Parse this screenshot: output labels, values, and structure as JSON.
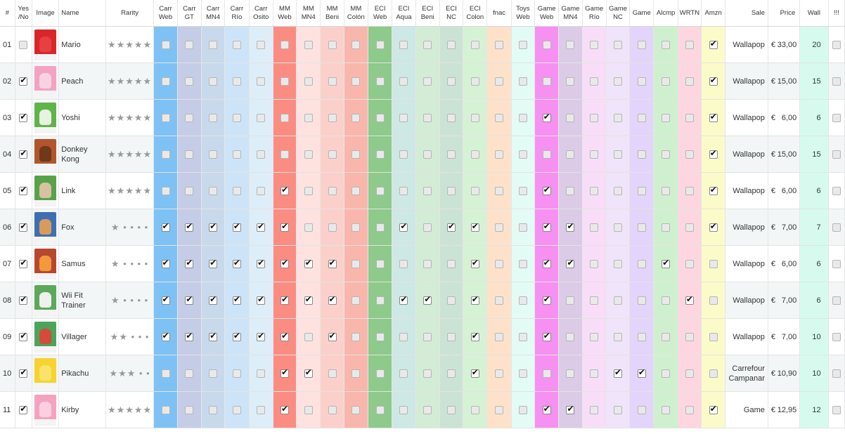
{
  "columns": [
    {
      "label": "#",
      "cls": "num",
      "w": 21
    },
    {
      "label": "Yes /No",
      "cls": "yn",
      "w": 24
    },
    {
      "label": "Image",
      "cls": "img",
      "w": 38
    },
    {
      "label": "Name",
      "cls": "name",
      "w": 66
    },
    {
      "label": "Rarity",
      "cls": "rarity",
      "w": 68
    },
    {
      "label": "Carr Web",
      "color": "#7ec2f5",
      "w": 33
    },
    {
      "label": "Carr GT",
      "color": "#c5cce6",
      "w": 34
    },
    {
      "label": "Carr MN4",
      "color": "#c8d9ec",
      "w": 33
    },
    {
      "label": "Carr Río",
      "color": "#cde4f8",
      "w": 34
    },
    {
      "label": "Carr Osito",
      "color": "#ddeef9",
      "w": 34
    },
    {
      "label": "MM Web",
      "color": "#fb8c82",
      "w": 33
    },
    {
      "label": "MM MN4",
      "color": "#fde2e0",
      "w": 34
    },
    {
      "label": "MM Beni",
      "color": "#fbd0cb",
      "w": 33
    },
    {
      "label": "MM Colón",
      "color": "#f9b6ad",
      "w": 34
    },
    {
      "label": "ECI Web",
      "color": "#8dca8b",
      "w": 34
    },
    {
      "label": "ECI Aqua",
      "color": "#cde8e5",
      "w": 33
    },
    {
      "label": "ECI Beni",
      "color": "#d3ecd5",
      "w": 34
    },
    {
      "label": "ECI NC",
      "color": "#cbe3d5",
      "w": 33
    },
    {
      "label": "ECI Colon",
      "color": "#d6f2d5",
      "w": 34
    },
    {
      "label": "fnac",
      "color": "#fde2c9",
      "w": 34
    },
    {
      "label": "Toys Web",
      "color": "#e3fbf5",
      "w": 33
    },
    {
      "label": "Game Web",
      "color": "#f690f1",
      "w": 34
    },
    {
      "label": "Game MN4",
      "color": "#dccbe7",
      "w": 33
    },
    {
      "label": "Game Río",
      "color": "#f8ddf9",
      "w": 34
    },
    {
      "label": "Game NC",
      "color": "#efe4fa",
      "w": 33
    },
    {
      "label": "Game",
      "color": "#e2d4fa",
      "w": 34
    },
    {
      "label": "Alcmp",
      "color": "#cff0cf",
      "w": 34
    },
    {
      "label": "WRTN",
      "color": "#fdd6e0",
      "w": 33
    },
    {
      "label": "Amzn",
      "color": "#fbfbc9",
      "w": 34
    },
    {
      "label": "Sale",
      "cls": "sale",
      "w": 60
    },
    {
      "label": "Price",
      "cls": "price",
      "w": 45
    },
    {
      "label": "Wall",
      "color": "#d6fbee",
      "cls": "wall",
      "w": 40
    },
    {
      "label": "!!!",
      "cls": "ex",
      "w": 23
    }
  ],
  "rows": [
    {
      "num": "01",
      "yes": false,
      "name": "Mario",
      "stars": "★★★★★",
      "thumb": "#d8262b",
      "fig": "#e84040",
      "checks": [
        0,
        0,
        0,
        0,
        0,
        0,
        0,
        0,
        0,
        0,
        0,
        0,
        0,
        0,
        0,
        0,
        0,
        0,
        0,
        0,
        0,
        0,
        0,
        1
      ],
      "sale": "Wallapop",
      "currency": "€",
      "price": "33,00",
      "wall": "20",
      "ex": false
    },
    {
      "num": "02",
      "yes": true,
      "name": "Peach",
      "stars": "★★★★★",
      "thumb": "#f3a2c4",
      "fig": "#f7d2e1",
      "checks": [
        0,
        0,
        0,
        0,
        0,
        0,
        0,
        0,
        0,
        0,
        0,
        0,
        0,
        0,
        0,
        0,
        0,
        0,
        0,
        0,
        0,
        0,
        0,
        1
      ],
      "sale": "Wallapop",
      "currency": "€",
      "price": "15,00",
      "wall": "15",
      "ex": false
    },
    {
      "num": "03",
      "yes": true,
      "name": "Yoshi",
      "stars": "★★★★★",
      "thumb": "#5fb44a",
      "fig": "#e7f2e0",
      "checks": [
        0,
        0,
        0,
        0,
        0,
        0,
        0,
        0,
        0,
        0,
        0,
        0,
        0,
        0,
        0,
        0,
        1,
        0,
        0,
        0,
        0,
        0,
        0,
        1
      ],
      "sale": "Wallapop",
      "currency": "€",
      "price": "6,00",
      "wall": "6",
      "ex": false
    },
    {
      "num": "04",
      "yes": true,
      "name": "Donkey Kong",
      "stars": "★★★★★",
      "thumb": "#b4542c",
      "fig": "#6d3a1c",
      "checks": [
        0,
        0,
        0,
        0,
        0,
        0,
        0,
        0,
        0,
        0,
        0,
        0,
        0,
        0,
        0,
        0,
        0,
        0,
        0,
        0,
        0,
        0,
        0,
        1
      ],
      "sale": "Wallapop",
      "currency": "€",
      "price": "15,00",
      "wall": "15",
      "ex": false
    },
    {
      "num": "05",
      "yes": true,
      "name": "Link",
      "stars": "★★★★★",
      "thumb": "#58a24a",
      "fig": "#d6c2a0",
      "checks": [
        0,
        0,
        0,
        0,
        0,
        1,
        0,
        0,
        0,
        0,
        0,
        0,
        0,
        0,
        0,
        0,
        1,
        0,
        0,
        0,
        0,
        0,
        0,
        1
      ],
      "sale": "Wallapop",
      "currency": "€",
      "price": "6,00",
      "wall": "6",
      "ex": false
    },
    {
      "num": "06",
      "yes": true,
      "name": "Fox",
      "stars": "★ • • • •",
      "thumb": "#3f6fb3",
      "fig": "#d89c5a",
      "checks": [
        1,
        1,
        1,
        1,
        1,
        1,
        0,
        0,
        0,
        0,
        1,
        0,
        1,
        1,
        0,
        0,
        1,
        1,
        0,
        0,
        0,
        0,
        0,
        1
      ],
      "sale": "Wallapop",
      "currency": "€",
      "price": "7,00",
      "wall": "7",
      "ex": false
    },
    {
      "num": "07",
      "yes": true,
      "name": "Samus",
      "stars": "★ • • • •",
      "thumb": "#b7472f",
      "fig": "#f09a3b",
      "checks": [
        1,
        1,
        1,
        1,
        1,
        1,
        1,
        1,
        0,
        0,
        0,
        0,
        0,
        1,
        0,
        0,
        1,
        1,
        0,
        0,
        0,
        1,
        0,
        0
      ],
      "sale": "Wallapop",
      "currency": "€",
      "price": "6,00",
      "wall": "6",
      "ex": false
    },
    {
      "num": "08",
      "yes": true,
      "name": "Wii Fit Trainer",
      "stars": "★ • • • •",
      "thumb": "#5da85c",
      "fig": "#eef2ee",
      "checks": [
        1,
        1,
        1,
        1,
        1,
        1,
        1,
        1,
        0,
        0,
        1,
        1,
        0,
        1,
        0,
        0,
        1,
        0,
        0,
        0,
        0,
        0,
        1,
        0
      ],
      "sale": "Wallapop",
      "currency": "€",
      "price": "7,00",
      "wall": "6",
      "ex": false
    },
    {
      "num": "09",
      "yes": true,
      "name": "Villager",
      "stars": "★★ • • •",
      "thumb": "#4aa55a",
      "fig": "#d64a3a",
      "checks": [
        1,
        1,
        1,
        1,
        1,
        1,
        0,
        1,
        0,
        0,
        0,
        0,
        0,
        1,
        0,
        0,
        1,
        0,
        0,
        0,
        0,
        0,
        0,
        0
      ],
      "sale": "Wallapop",
      "currency": "€",
      "price": "7,00",
      "wall": "10",
      "ex": false
    },
    {
      "num": "10",
      "yes": true,
      "name": "Pikachu",
      "stars": "★★★ • •",
      "thumb": "#f6d32e",
      "fig": "#f9e36a",
      "checks": [
        0,
        0,
        0,
        0,
        0,
        1,
        1,
        0,
        0,
        0,
        0,
        0,
        0,
        1,
        0,
        0,
        0,
        0,
        0,
        1,
        1,
        0,
        0,
        0
      ],
      "sale": "Carrefour Campanar",
      "currency": "€",
      "price": "10,90",
      "wall": "10",
      "ex": false
    },
    {
      "num": "11",
      "yes": true,
      "name": "Kirby",
      "stars": "★★★★★",
      "thumb": "#f4a3bf",
      "fig": "#fbcfe0",
      "checks": [
        0,
        0,
        0,
        0,
        0,
        1,
        0,
        0,
        0,
        0,
        0,
        0,
        0,
        0,
        0,
        0,
        1,
        1,
        0,
        0,
        0,
        0,
        0,
        1
      ],
      "sale": "Game",
      "currency": "€",
      "price": "12,95",
      "wall": "12",
      "ex": false
    }
  ]
}
